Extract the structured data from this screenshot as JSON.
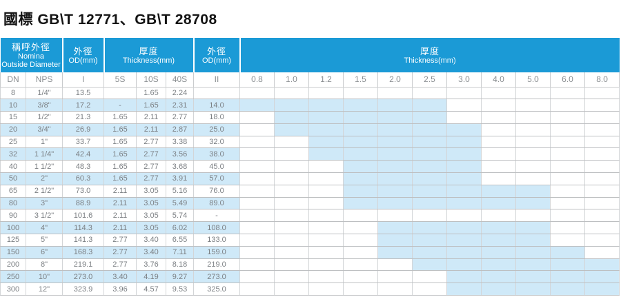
{
  "page": {
    "title": "國標 GB\\T 12771、GB\\T 28708"
  },
  "colors": {
    "header_blue": "#1b9ad6",
    "highlight_blue": "#cfe9f8",
    "grid_line": "#c9cbcd",
    "text_gray": "#7b7f83",
    "title_black": "#141414"
  },
  "table": {
    "header_groups": [
      {
        "zh": "稱呼外徑",
        "en1": "Nomina",
        "en2": "Outside Diameter"
      },
      {
        "zh": "外徑",
        "en": "OD(mm)"
      },
      {
        "zh": "厚度",
        "en": "Thickness(mm)"
      },
      {
        "zh": "外徑",
        "en": "OD(mm)"
      },
      {
        "zh": "厚度",
        "en": "Thickness(mm)"
      }
    ],
    "subheaders": [
      "DN",
      "NPS",
      "I",
      "5S",
      "10S",
      "40S",
      "II"
    ],
    "thickness_columns": [
      "0.8",
      "1.0",
      "1.2",
      "1.5",
      "2.0",
      "2.5",
      "3.0",
      "4.0",
      "5.0",
      "6.0",
      "8.0"
    ],
    "rows": [
      {
        "dn": "8",
        "nps": "1/4\"",
        "od1": "13.5",
        "s5": "",
        "s10": "1.65",
        "s40": "2.24",
        "od2": "",
        "marks": []
      },
      {
        "dn": "10",
        "nps": "3/8\"",
        "od1": "17.2",
        "s5": "-",
        "s10": "1.65",
        "s40": "2.31",
        "od2": "14.0",
        "marks": [
          "0.8",
          "1.0",
          "1.2",
          "1.5",
          "2.0",
          "2.5"
        ]
      },
      {
        "dn": "15",
        "nps": "1/2\"",
        "od1": "21.3",
        "s5": "1.65",
        "s10": "2.11",
        "s40": "2.77",
        "od2": "18.0",
        "marks": [
          "1.0",
          "1.2",
          "1.5",
          "2.0",
          "2.5"
        ]
      },
      {
        "dn": "20",
        "nps": "3/4\"",
        "od1": "26.9",
        "s5": "1.65",
        "s10": "2.11",
        "s40": "2.87",
        "od2": "25.0",
        "marks": [
          "1.0",
          "1.2",
          "1.5",
          "2.0",
          "2.5",
          "3.0"
        ]
      },
      {
        "dn": "25",
        "nps": "1\"",
        "od1": "33.7",
        "s5": "1.65",
        "s10": "2.77",
        "s40": "3.38",
        "od2": "32.0",
        "marks": [
          "1.2",
          "1.5",
          "2.0",
          "2.5",
          "3.0"
        ]
      },
      {
        "dn": "32",
        "nps": "1 1/4\"",
        "od1": "42.4",
        "s5": "1.65",
        "s10": "2.77",
        "s40": "3.56",
        "od2": "38.0",
        "marks": [
          "1.2",
          "1.5",
          "2.0",
          "2.5",
          "3.0"
        ]
      },
      {
        "dn": "40",
        "nps": "1 1/2\"",
        "od1": "48.3",
        "s5": "1.65",
        "s10": "2.77",
        "s40": "3.68",
        "od2": "45.0",
        "marks": [
          "1.5",
          "2.0",
          "2.5",
          "3.0"
        ]
      },
      {
        "dn": "50",
        "nps": "2\"",
        "od1": "60.3",
        "s5": "1.65",
        "s10": "2.77",
        "s40": "3.91",
        "od2": "57.0",
        "marks": [
          "1.5",
          "2.0",
          "2.5",
          "3.0"
        ]
      },
      {
        "dn": "65",
        "nps": "2 1/2\"",
        "od1": "73.0",
        "s5": "2.11",
        "s10": "3.05",
        "s40": "5.16",
        "od2": "76.0",
        "marks": [
          "1.5",
          "2.0",
          "2.5",
          "3.0",
          "4.0",
          "5.0"
        ]
      },
      {
        "dn": "80",
        "nps": "3\"",
        "od1": "88.9",
        "s5": "2.11",
        "s10": "3.05",
        "s40": "5.49",
        "od2": "89.0",
        "marks": [
          "1.5",
          "2.0",
          "2.5",
          "3.0",
          "4.0",
          "5.0"
        ]
      },
      {
        "dn": "90",
        "nps": "3 1/2\"",
        "od1": "101.6",
        "s5": "2.11",
        "s10": "3.05",
        "s40": "5.74",
        "od2": "-",
        "marks": []
      },
      {
        "dn": "100",
        "nps": "4\"",
        "od1": "114.3",
        "s5": "2.11",
        "s10": "3.05",
        "s40": "6.02",
        "od2": "108.0",
        "marks": [
          "2.0",
          "2.5",
          "3.0",
          "4.0",
          "5.0"
        ]
      },
      {
        "dn": "125",
        "nps": "5\"",
        "od1": "141.3",
        "s5": "2.77",
        "s10": "3.40",
        "s40": "6.55",
        "od2": "133.0",
        "marks": [
          "2.0",
          "2.5",
          "3.0",
          "4.0",
          "5.0"
        ]
      },
      {
        "dn": "150",
        "nps": "6\"",
        "od1": "168.3",
        "s5": "2.77",
        "s10": "3.40",
        "s40": "7.11",
        "od2": "159.0",
        "marks": [
          "2.0",
          "2.5",
          "3.0",
          "4.0",
          "5.0",
          "6.0"
        ]
      },
      {
        "dn": "200",
        "nps": "8\"",
        "od1": "219.1",
        "s5": "2.77",
        "s10": "3.76",
        "s40": "8.18",
        "od2": "219.0",
        "marks": [
          "2.5",
          "3.0",
          "4.0",
          "5.0",
          "6.0",
          "8.0"
        ]
      },
      {
        "dn": "250",
        "nps": "10\"",
        "od1": "273.0",
        "s5": "3.40",
        "s10": "4.19",
        "s40": "9.27",
        "od2": "273.0",
        "marks": [
          "3.0",
          "4.0",
          "5.0",
          "6.0",
          "8.0"
        ]
      },
      {
        "dn": "300",
        "nps": "12\"",
        "od1": "323.9",
        "s5": "3.96",
        "s10": "4.57",
        "s40": "9.53",
        "od2": "325.0",
        "marks": [
          "3.0",
          "4.0",
          "5.0",
          "6.0",
          "8.0"
        ]
      }
    ]
  }
}
